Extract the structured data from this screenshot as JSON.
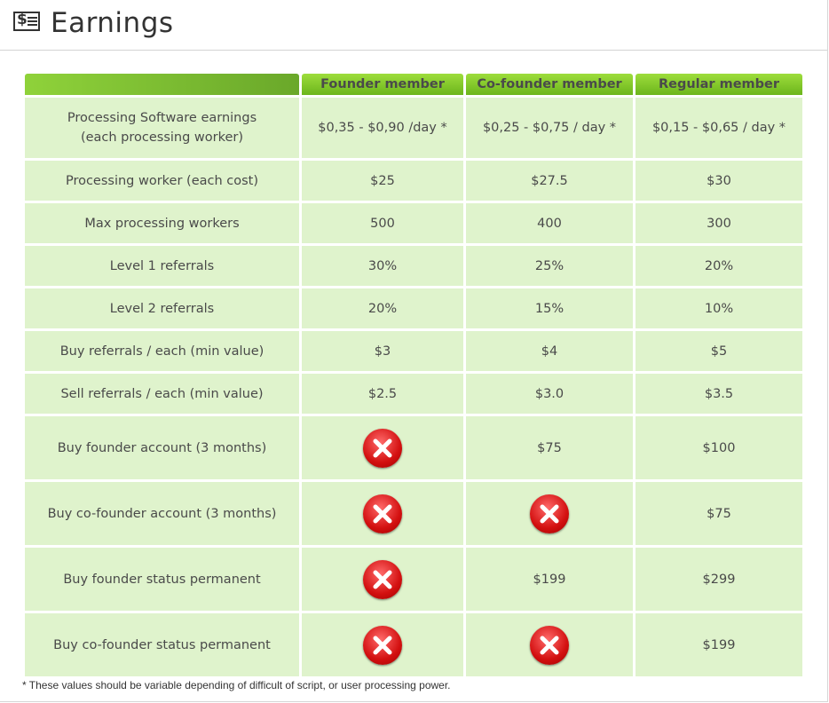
{
  "page": {
    "title": "Earnings",
    "icon": "dollar-document-icon"
  },
  "table": {
    "columns": [
      "Founder member",
      "Co-founder member",
      "Regular member"
    ],
    "rows": [
      {
        "label_lines": [
          "Processing Software earnings",
          "(each processing worker)"
        ],
        "values": [
          "$0,35 - $0,90 /day *",
          "$0,25 - $0,75 / day *",
          "$0,15 - $0,65 / day *"
        ]
      },
      {
        "label_lines": [
          "Processing worker (each cost)"
        ],
        "values": [
          "$25",
          "$27.5",
          "$30"
        ]
      },
      {
        "label_lines": [
          "Max processing workers"
        ],
        "values": [
          "500",
          "400",
          "300"
        ]
      },
      {
        "label_lines": [
          "Level 1 referrals"
        ],
        "values": [
          "30%",
          "25%",
          "20%"
        ]
      },
      {
        "label_lines": [
          "Level 2 referrals"
        ],
        "values": [
          "20%",
          "15%",
          "10%"
        ]
      },
      {
        "label_lines": [
          "Buy referrals / each (min value)"
        ],
        "values": [
          "$3",
          "$4",
          "$5"
        ]
      },
      {
        "label_lines": [
          "Sell referrals / each (min value)"
        ],
        "values": [
          "$2.5",
          "$3.0",
          "$3.5"
        ]
      },
      {
        "label_lines": [
          "Buy founder account (3 months)"
        ],
        "values": [
          null,
          "$75",
          "$100"
        ]
      },
      {
        "label_lines": [
          "Buy co-founder account (3 months)"
        ],
        "values": [
          null,
          null,
          "$75"
        ]
      },
      {
        "label_lines": [
          "Buy founder status permanent"
        ],
        "values": [
          null,
          "$199",
          "$299"
        ]
      },
      {
        "label_lines": [
          "Buy co-founder status permanent"
        ],
        "values": [
          null,
          null,
          "$199"
        ]
      }
    ],
    "unavailable_icon": "red-x-icon"
  },
  "footnote": "* These values should be variable depending of difficult of script, or user processing power.",
  "colors": {
    "header_green": "#7cc42a",
    "cell_green": "#dff3cc",
    "unavailable_red": "#d31010"
  }
}
